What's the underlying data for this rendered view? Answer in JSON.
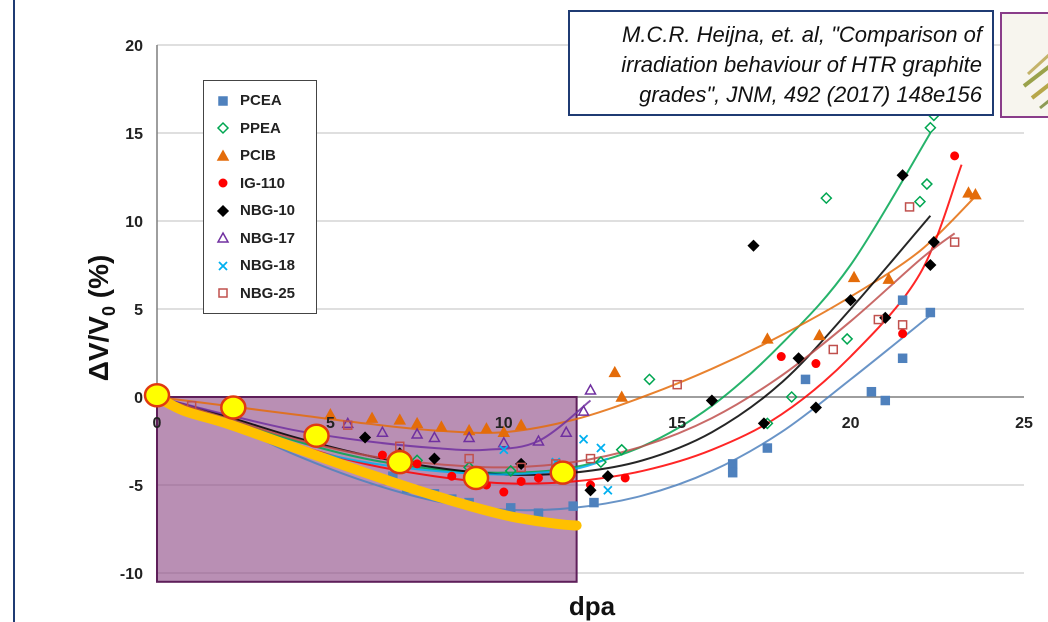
{
  "citation": {
    "lines": [
      "M.C.R. Heijna, et. al, \"Comparison of",
      "irradiation behaviour of HTR graphite",
      "grades\", JNM, 492 (2017) 148e156"
    ]
  },
  "chart_data": {
    "type": "scatter",
    "title": "",
    "xlabel": "dpa",
    "ylabel": "ΔV/V0 (%)",
    "xlim": [
      0,
      25
    ],
    "ylim": [
      -10,
      20
    ],
    "x_ticks": [
      0,
      5,
      10,
      15,
      20,
      25
    ],
    "x_tick_labels": [
      "0",
      "5",
      "10",
      "15",
      "20",
      "25"
    ],
    "y_ticks": [
      -10,
      -5,
      0,
      5,
      10,
      15,
      20
    ],
    "y_tick_labels": [
      "-10",
      "-5",
      "0",
      "5",
      "10",
      "15",
      "20"
    ],
    "grid": "horizontal",
    "legend_position": "top-left",
    "series": [
      {
        "name": "PCEA",
        "marker": "square",
        "color": "#4f81bd",
        "points": [
          [
            6.8,
            -4.5
          ],
          [
            7.2,
            -5.2
          ],
          [
            8.0,
            -5.5
          ],
          [
            8.5,
            -5.8
          ],
          [
            9.0,
            -6.0
          ],
          [
            10.2,
            -6.3
          ],
          [
            11.0,
            -6.6
          ],
          [
            12.0,
            -6.2
          ],
          [
            12.6,
            -6.0
          ],
          [
            16.6,
            -3.8
          ],
          [
            16.6,
            -4.3
          ],
          [
            17.6,
            -2.9
          ],
          [
            18.7,
            1.0
          ],
          [
            20.6,
            0.3
          ],
          [
            21.0,
            -0.2
          ],
          [
            21.5,
            2.2
          ],
          [
            21.5,
            5.5
          ],
          [
            22.3,
            4.8
          ]
        ],
        "trend": [
          [
            0,
            0
          ],
          [
            2,
            -1.5
          ],
          [
            4,
            -3.3
          ],
          [
            6,
            -4.8
          ],
          [
            8,
            -5.9
          ],
          [
            10,
            -6.4
          ],
          [
            12,
            -6.3
          ],
          [
            14,
            -5.6
          ],
          [
            16,
            -4.2
          ],
          [
            18,
            -2.0
          ],
          [
            20,
            1.0
          ],
          [
            22.4,
            4.8
          ]
        ]
      },
      {
        "name": "PPEA",
        "marker": "diamond-open",
        "color": "#00a651",
        "points": [
          [
            7.5,
            -3.6
          ],
          [
            9.0,
            -4.0
          ],
          [
            10.2,
            -4.2
          ],
          [
            12.8,
            -3.7
          ],
          [
            13.4,
            -3.0
          ],
          [
            14.2,
            1.0
          ],
          [
            17.6,
            -1.5
          ],
          [
            18.3,
            0.0
          ],
          [
            19.3,
            11.3
          ],
          [
            19.9,
            3.3
          ],
          [
            22.0,
            11.1
          ],
          [
            22.2,
            12.1
          ],
          [
            22.3,
            15.3
          ],
          [
            22.4,
            16.0
          ]
        ],
        "trend": [
          [
            0,
            0
          ],
          [
            2,
            -1.2
          ],
          [
            4,
            -2.5
          ],
          [
            6,
            -3.5
          ],
          [
            8,
            -4.1
          ],
          [
            10,
            -4.3
          ],
          [
            12,
            -4.0
          ],
          [
            14,
            -2.8
          ],
          [
            16,
            -0.5
          ],
          [
            18,
            3.0
          ],
          [
            20,
            7.5
          ],
          [
            22.3,
            15.0
          ]
        ]
      },
      {
        "name": "PCIB",
        "marker": "triangle",
        "color": "#e46c0a",
        "points": [
          [
            5.0,
            -1.0
          ],
          [
            6.2,
            -1.2
          ],
          [
            7.0,
            -1.3
          ],
          [
            7.5,
            -1.5
          ],
          [
            8.2,
            -1.7
          ],
          [
            9.0,
            -1.9
          ],
          [
            9.5,
            -1.8
          ],
          [
            10.0,
            -2.0
          ],
          [
            10.5,
            -1.6
          ],
          [
            13.2,
            1.4
          ],
          [
            13.4,
            0.0
          ],
          [
            17.6,
            3.3
          ],
          [
            19.1,
            3.5
          ],
          [
            20.1,
            6.8
          ],
          [
            21.1,
            6.7
          ],
          [
            23.4,
            11.6
          ],
          [
            23.6,
            11.5
          ]
        ],
        "trend": [
          [
            0,
            0
          ],
          [
            2,
            -0.5
          ],
          [
            4,
            -1.0
          ],
          [
            6,
            -1.5
          ],
          [
            8,
            -1.9
          ],
          [
            10,
            -2.0
          ],
          [
            12,
            -1.3
          ],
          [
            14,
            0.0
          ],
          [
            16,
            1.6
          ],
          [
            18,
            3.5
          ],
          [
            20,
            5.7
          ],
          [
            22,
            8.3
          ],
          [
            23.6,
            11.4
          ]
        ]
      },
      {
        "name": "IG-110",
        "marker": "circle",
        "color": "#ff0000",
        "points": [
          [
            6.5,
            -3.3
          ],
          [
            7.5,
            -3.8
          ],
          [
            8.5,
            -4.5
          ],
          [
            9.0,
            -4.6
          ],
          [
            9.5,
            -5.0
          ],
          [
            10.0,
            -5.4
          ],
          [
            10.5,
            -4.8
          ],
          [
            11.0,
            -4.6
          ],
          [
            12.5,
            -5.0
          ],
          [
            13.5,
            -4.6
          ],
          [
            18.0,
            2.3
          ],
          [
            19.0,
            1.9
          ],
          [
            21.5,
            3.6
          ],
          [
            23.0,
            13.7
          ]
        ],
        "trend": [
          [
            0,
            0
          ],
          [
            2,
            -1.3
          ],
          [
            4,
            -2.7
          ],
          [
            6,
            -3.8
          ],
          [
            8,
            -4.5
          ],
          [
            10,
            -4.9
          ],
          [
            12,
            -4.8
          ],
          [
            14,
            -4.2
          ],
          [
            16,
            -3.0
          ],
          [
            18,
            -1.0
          ],
          [
            20,
            2.3
          ],
          [
            22,
            7.0
          ],
          [
            23.2,
            13.2
          ]
        ]
      },
      {
        "name": "NBG-10",
        "marker": "diamond",
        "color": "#000000",
        "points": [
          [
            6.0,
            -2.3
          ],
          [
            7.0,
            -3.2
          ],
          [
            8.0,
            -3.5
          ],
          [
            10.5,
            -3.8
          ],
          [
            12.5,
            -5.3
          ],
          [
            13.0,
            -4.5
          ],
          [
            16.0,
            -0.2
          ],
          [
            17.2,
            8.6
          ],
          [
            17.5,
            -1.5
          ],
          [
            18.5,
            2.2
          ],
          [
            19.0,
            -0.6
          ],
          [
            20.0,
            5.5
          ],
          [
            21.0,
            4.5
          ],
          [
            21.5,
            12.6
          ],
          [
            22.3,
            7.5
          ],
          [
            22.4,
            8.8
          ]
        ],
        "trend": [
          [
            0,
            0
          ],
          [
            2,
            -1.1
          ],
          [
            4,
            -2.3
          ],
          [
            6,
            -3.3
          ],
          [
            8,
            -4.0
          ],
          [
            10,
            -4.4
          ],
          [
            12,
            -4.3
          ],
          [
            14,
            -3.6
          ],
          [
            16,
            -2.0
          ],
          [
            18,
            0.8
          ],
          [
            20,
            5.0
          ],
          [
            22.3,
            10.3
          ]
        ]
      },
      {
        "name": "NBG-17",
        "marker": "triangle-open",
        "color": "#7030a0",
        "points": [
          [
            5.5,
            -1.5
          ],
          [
            6.5,
            -2.0
          ],
          [
            7.5,
            -2.1
          ],
          [
            8.0,
            -2.3
          ],
          [
            9.0,
            -2.3
          ],
          [
            10.0,
            -2.6
          ],
          [
            11.0,
            -2.5
          ],
          [
            11.8,
            -2.0
          ],
          [
            12.3,
            -0.8
          ],
          [
            12.5,
            0.4
          ]
        ],
        "trend": [
          [
            0,
            0
          ],
          [
            2,
            -1.0
          ],
          [
            4,
            -1.9
          ],
          [
            6,
            -2.5
          ],
          [
            8,
            -2.9
          ],
          [
            9.5,
            -3.0
          ],
          [
            11,
            -2.5
          ],
          [
            12.5,
            -0.2
          ]
        ]
      },
      {
        "name": "NBG-18",
        "marker": "cross",
        "color": "#00b0f0",
        "points": [
          [
            10.0,
            -3.0
          ],
          [
            11.5,
            -3.7
          ],
          [
            12.3,
            -2.4
          ],
          [
            12.8,
            -2.9
          ],
          [
            13.0,
            -5.3
          ]
        ],
        "trend": [
          [
            0,
            0
          ],
          [
            2,
            -1.4
          ],
          [
            4,
            -2.8
          ],
          [
            6,
            -3.7
          ],
          [
            8,
            -4.2
          ],
          [
            10,
            -4.4
          ],
          [
            12,
            -4.1
          ],
          [
            13.0,
            -3.5
          ]
        ]
      },
      {
        "name": "NBG-25",
        "marker": "square-open",
        "color": "#c0504d",
        "points": [
          [
            1.0,
            -0.5
          ],
          [
            5.5,
            -1.6
          ],
          [
            7.0,
            -2.8
          ],
          [
            9.0,
            -3.5
          ],
          [
            10.5,
            -4.0
          ],
          [
            11.5,
            -3.8
          ],
          [
            12.5,
            -3.5
          ],
          [
            15.0,
            0.7
          ],
          [
            19.5,
            2.7
          ],
          [
            20.8,
            4.4
          ],
          [
            21.5,
            4.1
          ],
          [
            21.7,
            10.8
          ],
          [
            23.0,
            8.8
          ]
        ],
        "trend": [
          [
            0,
            0
          ],
          [
            2,
            -1.2
          ],
          [
            4,
            -2.4
          ],
          [
            6,
            -3.3
          ],
          [
            8,
            -3.8
          ],
          [
            10,
            -4.0
          ],
          [
            12,
            -3.7
          ],
          [
            14,
            -2.8
          ],
          [
            16,
            -1.2
          ],
          [
            18,
            1.2
          ],
          [
            20,
            4.3
          ],
          [
            22,
            7.8
          ],
          [
            23,
            9.3
          ]
        ]
      }
    ],
    "annotations": {
      "shaded_region": {
        "x": [
          0,
          12.1
        ],
        "y": [
          -10.5,
          0
        ],
        "color": "#8e4a86"
      },
      "yellow_curve": [
        [
          0,
          0
        ],
        [
          0.8,
          -0.8
        ],
        [
          2,
          -1.5
        ],
        [
          4,
          -2.9
        ],
        [
          6,
          -4.3
        ],
        [
          8,
          -5.6
        ],
        [
          10,
          -6.7
        ],
        [
          11.5,
          -7.2
        ],
        [
          12.1,
          -7.3
        ]
      ],
      "highlight_points": [
        [
          0,
          0.1
        ],
        [
          2.2,
          -0.6
        ],
        [
          4.6,
          -2.2
        ],
        [
          7.0,
          -3.7
        ],
        [
          9.2,
          -4.6
        ],
        [
          11.7,
          -4.3
        ]
      ]
    }
  }
}
